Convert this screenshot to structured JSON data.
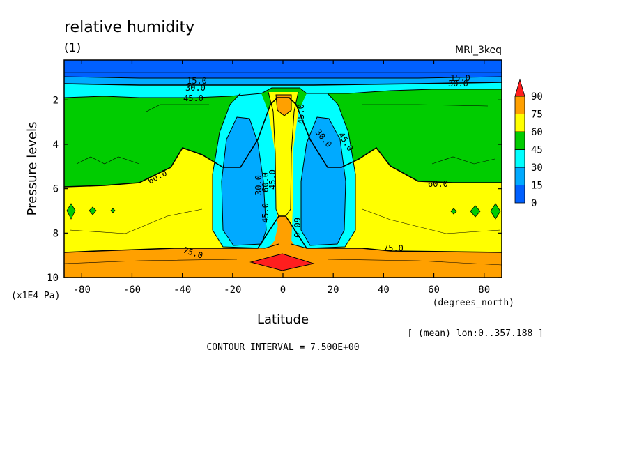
{
  "chart_data": {
    "type": "heatmap",
    "title": "relative humidity",
    "panel_label": "(1)",
    "model": "MRI_3keq",
    "xlabel": "Latitude",
    "x_units": "(degrees_north)",
    "ylabel": "Pressure levels",
    "y_units": "(x1E4 Pa)",
    "xlim": [
      -87,
      87
    ],
    "ylim": [
      10,
      0.2
    ],
    "x_ticks": [
      -80,
      -60,
      -40,
      -20,
      0,
      20,
      40,
      60,
      80
    ],
    "x_tick_labels": [
      "-80",
      "-60",
      "-40",
      "-20",
      "0",
      "20",
      "40",
      "60",
      "80"
    ],
    "y_ticks": [
      2,
      4,
      6,
      8,
      10
    ],
    "y_tick_labels": [
      "2",
      "4",
      "6",
      "8",
      "10"
    ],
    "averaging_note": "[ (mean) lon:0..357.188 ]",
    "contour_interval_text": "CONTOUR INTERVAL = 7.500E+00",
    "levels": [
      0,
      15,
      30,
      45,
      60,
      75,
      90
    ],
    "level_labels": [
      "0",
      "15",
      "30",
      "45",
      "60",
      "75",
      "90"
    ],
    "colors": [
      "#0060ff",
      "#00aaff",
      "#00ffff",
      "#00cc00",
      "#ffff00",
      "#ffa000",
      "#ff1e1e"
    ],
    "contour_labels": [
      "15.0",
      "30.0",
      "45.0",
      "60.0",
      "75.0",
      "15.0",
      "30.0",
      "45.0",
      "30.0",
      "60.0",
      "45.0",
      "60.0",
      "45.0",
      "30.0",
      "45.0",
      "60.0",
      "75.0"
    ],
    "grid": false,
    "legend_position": "right"
  }
}
